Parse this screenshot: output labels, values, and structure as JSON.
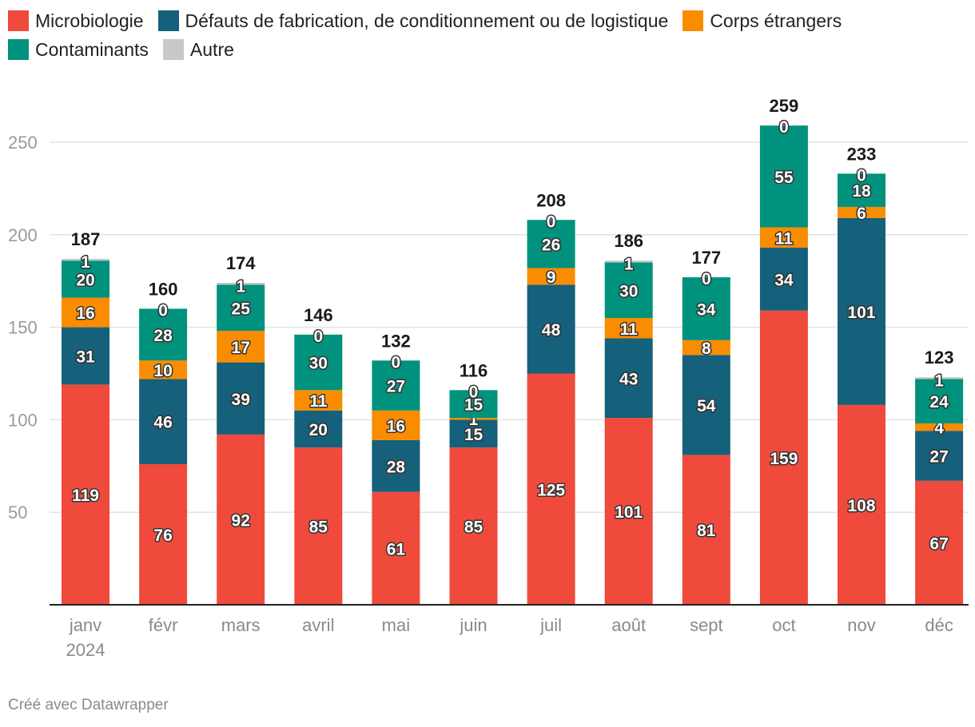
{
  "chart_data": {
    "type": "bar",
    "stacked": true,
    "title": "",
    "xlabel": "",
    "ylabel": "",
    "ylim": [
      0,
      265
    ],
    "yticks": [
      50,
      100,
      150,
      200,
      250
    ],
    "grid": true,
    "legend_position": "top-left",
    "categories": [
      "janv",
      "févr",
      "mars",
      "avril",
      "mai",
      "juin",
      "juil",
      "août",
      "sept",
      "oct",
      "nov",
      "déc"
    ],
    "category_sublabels": [
      "2024",
      "",
      "",
      "",
      "",
      "",
      "",
      "",
      "",
      "",
      "",
      ""
    ],
    "totals": [
      187,
      160,
      174,
      146,
      132,
      116,
      208,
      186,
      177,
      259,
      233,
      123
    ],
    "series": [
      {
        "name": "Microbiologie",
        "color": "#ef4a3c",
        "values": [
          119,
          76,
          92,
          85,
          61,
          85,
          125,
          101,
          81,
          159,
          108,
          67
        ]
      },
      {
        "name": "Défauts de fabrication, de conditionnement ou de logistique",
        "color": "#15607a",
        "values": [
          31,
          46,
          39,
          20,
          28,
          15,
          48,
          43,
          54,
          34,
          101,
          27
        ]
      },
      {
        "name": "Corps étrangers",
        "color": "#fa8c00",
        "values": [
          16,
          10,
          17,
          11,
          16,
          1,
          9,
          11,
          8,
          11,
          6,
          4
        ]
      },
      {
        "name": "Contaminants",
        "color": "#00927c",
        "values": [
          20,
          28,
          25,
          30,
          27,
          15,
          26,
          30,
          34,
          55,
          18,
          24
        ]
      },
      {
        "name": "Autre",
        "color": "#c8c8c8",
        "values": [
          1,
          0,
          1,
          0,
          0,
          0,
          0,
          1,
          0,
          0,
          0,
          1
        ]
      }
    ]
  },
  "footer": {
    "credit": "Créé avec Datawrapper"
  }
}
